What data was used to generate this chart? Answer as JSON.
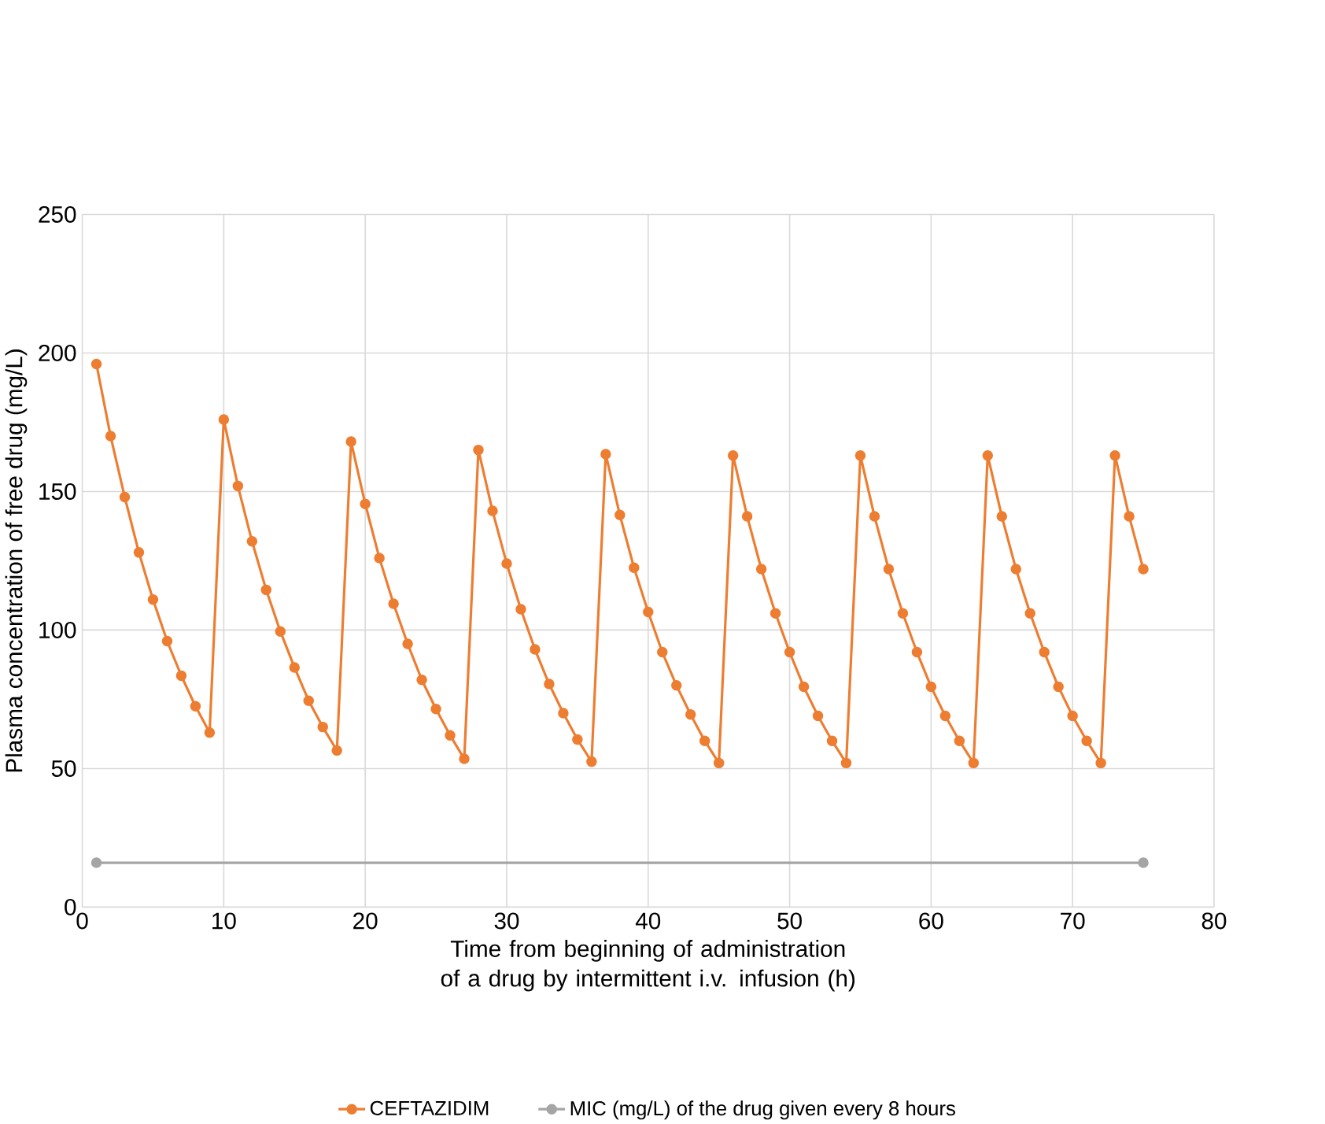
{
  "chart_data": {
    "type": "line",
    "xlabel": "Time from beginning of administration of a drug by intermittent i.v. infusion (h)",
    "ylabel": "Plasma concentration of free drug (mg/L)",
    "xlim": [
      0,
      80
    ],
    "xticks": [
      0,
      10,
      20,
      30,
      40,
      50,
      60,
      70,
      80
    ],
    "ylim": [
      0,
      250
    ],
    "yticks": [
      0,
      50,
      100,
      150,
      200,
      250
    ],
    "grid": true,
    "legend": "bottom",
    "marker": "circle",
    "line_style": "solid",
    "series": [
      {
        "name": "CEFTAZIDIM",
        "color": "#ed7d31",
        "x": [
          1,
          2,
          3,
          4,
          5,
          6,
          7,
          8,
          9,
          10,
          11,
          12,
          13,
          14,
          15,
          16,
          17,
          18,
          19,
          20,
          21,
          22,
          23,
          24,
          25,
          26,
          27,
          28,
          29,
          30,
          31,
          32,
          33,
          34,
          35,
          36,
          37,
          38,
          39,
          40,
          41,
          42,
          43,
          44,
          45,
          46,
          47,
          48,
          49,
          50,
          51,
          52,
          53,
          54,
          55,
          56,
          57,
          58,
          59,
          60,
          61,
          62,
          63,
          64,
          65,
          66,
          67,
          68,
          69,
          70,
          71,
          72,
          73,
          74,
          75
        ],
        "values": [
          196,
          170,
          148,
          128,
          111,
          96,
          83.5,
          72.5,
          63,
          176,
          152,
          132,
          114.5,
          99.5,
          86.5,
          74.5,
          65,
          56.5,
          168,
          145.5,
          126,
          109.5,
          95,
          82,
          71.5,
          62,
          53.5,
          165,
          143,
          124,
          107.5,
          93,
          80.5,
          70,
          60.5,
          52.5,
          163.5,
          141.5,
          122.5,
          106.5,
          92,
          80,
          69.5,
          60,
          52,
          163,
          141,
          122,
          106,
          92,
          79.5,
          69,
          60,
          52,
          163,
          141,
          122,
          106,
          92,
          79.5,
          69,
          60,
          52,
          163,
          141,
          122,
          106,
          92,
          79.5,
          69,
          60,
          52,
          163,
          141,
          122
        ]
      },
      {
        "name": "MIC (mg/L) of the drug given every 8 hours",
        "color": "#a5a5a5",
        "x": [
          1,
          75
        ],
        "values": [
          16,
          16
        ]
      }
    ]
  }
}
